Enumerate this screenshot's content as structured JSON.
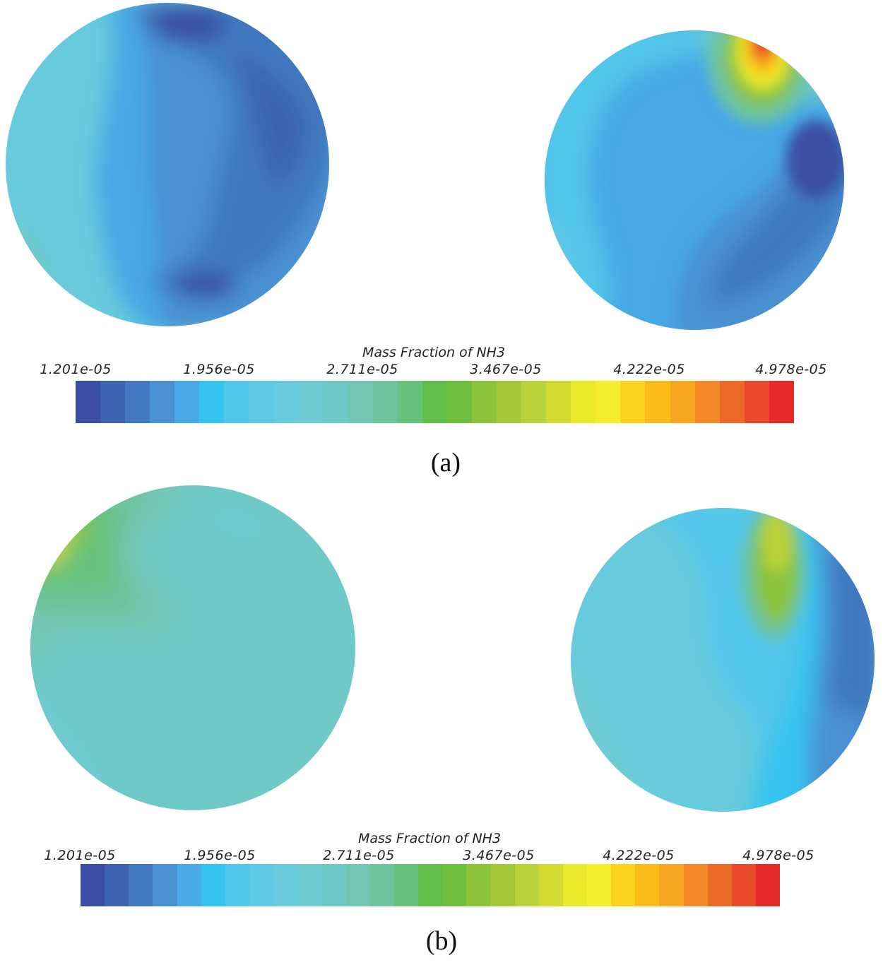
{
  "panels": [
    {
      "caption": "(a)",
      "colorbar": {
        "title": "Mass Fraction of NH3",
        "tick_labels": [
          "1.201e-05",
          "1.956e-05",
          "2.711e-05",
          "3.467e-05",
          "4.222e-05",
          "4.978e-05"
        ]
      }
    },
    {
      "caption": "(b)",
      "colorbar": {
        "title": "Mass Fraction of NH3",
        "tick_labels": [
          "1.201e-05",
          "1.956e-05",
          "2.711e-05",
          "3.467e-05",
          "4.222e-05",
          "4.978e-05"
        ]
      }
    }
  ],
  "colormap": [
    "#3a4fa3",
    "#3d63b0",
    "#4178bf",
    "#4a91d2",
    "#47a9e6",
    "#35c3f0",
    "#52c6eb",
    "#5dc9e4",
    "#68cbdd",
    "#6ecbd3",
    "#6fc9c6",
    "#72c6b4",
    "#6ec49c",
    "#66c27a",
    "#62be4a",
    "#6fbe3e",
    "#8cc43a",
    "#a5c93a",
    "#bcd23a",
    "#d3db33",
    "#eae82a",
    "#f6ed2c",
    "#fbd31e",
    "#fbbc19",
    "#f8a520",
    "#f28827",
    "#ec6a28",
    "#e94a29",
    "#e62a2a"
  ]
}
